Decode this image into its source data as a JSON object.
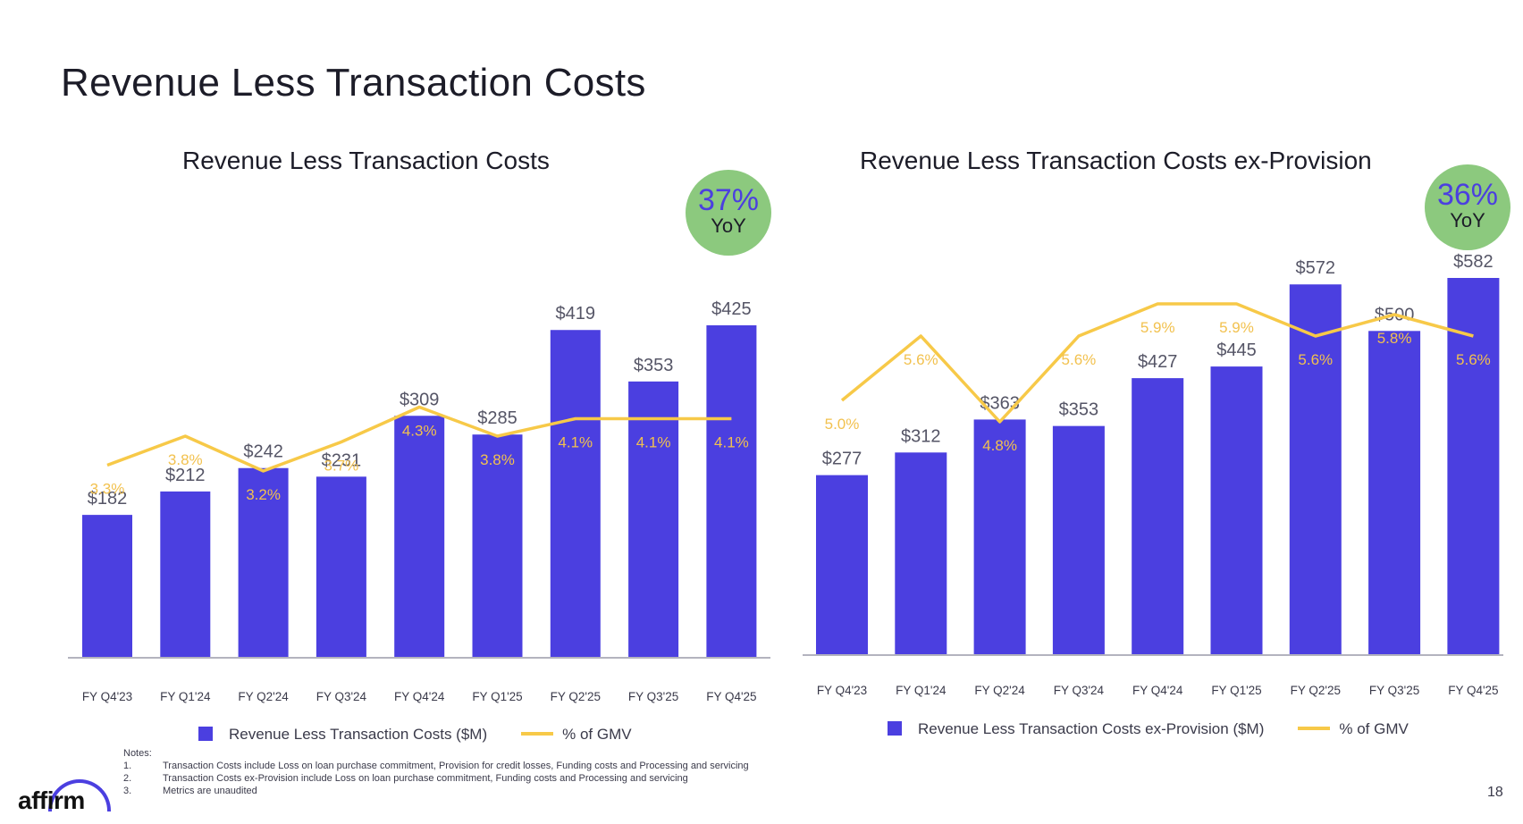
{
  "page": {
    "title": "Revenue Less Transaction Costs",
    "page_number": "18",
    "logo": "affirm"
  },
  "colors": {
    "bar": "#4b3fe0",
    "line": "#f7c948",
    "badge": "#8cc97e"
  },
  "notes": {
    "heading": "Notes:",
    "items": [
      {
        "num": "1.",
        "text": "Transaction Costs include Loss on loan purchase commitment, Provision for credit losses, Funding costs and Processing and servicing"
      },
      {
        "num": "2.",
        "text": "Transaction Costs ex-Provision include Loss on loan purchase commitment, Funding costs and Processing and servicing"
      },
      {
        "num": "3.",
        "text": "Metrics are unaudited"
      }
    ]
  },
  "chart_data": [
    {
      "type": "bar",
      "title": "Revenue Less Transaction Costs",
      "badge": {
        "value": "37%",
        "label": "YoY"
      },
      "categories": [
        "FY Q4'23",
        "FY Q1'24",
        "FY Q2'24",
        "FY Q3'24",
        "FY Q4'24",
        "FY Q1'25",
        "FY Q2'25",
        "FY Q3'25",
        "FY Q4'25"
      ],
      "series": [
        {
          "name": "Revenue Less Transaction Costs ($M)",
          "kind": "bar",
          "values": [
            182,
            212,
            242,
            231,
            309,
            285,
            419,
            353,
            425
          ],
          "labels": [
            "$182",
            "$212",
            "$242",
            "$231",
            "$309",
            "$285",
            "$419",
            "$353",
            "$425"
          ]
        },
        {
          "name": "% of GMV",
          "kind": "line",
          "values": [
            3.3,
            3.8,
            3.2,
            3.7,
            4.3,
            3.8,
            4.1,
            4.1,
            4.1
          ],
          "labels": [
            "3.3%",
            "3.8%",
            "3.2%",
            "3.7%",
            "4.3%",
            "3.8%",
            "4.1%",
            "4.1%",
            "4.1%"
          ]
        }
      ],
      "legend": {
        "bar": "Revenue Less Transaction Costs ($M)",
        "line": "% of GMV"
      },
      "ylim": [
        0,
        425
      ]
    },
    {
      "type": "bar",
      "title": "Revenue Less Transaction Costs ex-Provision",
      "badge": {
        "value": "36%",
        "label": "YoY"
      },
      "categories": [
        "FY Q4'23",
        "FY Q1'24",
        "FY Q2'24",
        "FY Q3'24",
        "FY Q4'24",
        "FY Q1'25",
        "FY Q2'25",
        "FY Q3'25",
        "FY Q4'25"
      ],
      "series": [
        {
          "name": "Revenue Less Transaction Costs ex-Provision ($M)",
          "kind": "bar",
          "values": [
            277,
            312,
            363,
            353,
            427,
            445,
            572,
            500,
            582
          ],
          "labels": [
            "$277",
            "$312",
            "$363",
            "$353",
            "$427",
            "$445",
            "$572",
            "$500",
            "$582"
          ]
        },
        {
          "name": "% of GMV",
          "kind": "line",
          "values": [
            5.0,
            5.6,
            4.8,
            5.6,
            5.9,
            5.9,
            5.6,
            5.8,
            5.6
          ],
          "labels": [
            "5.0%",
            "5.6%",
            "4.8%",
            "5.6%",
            "5.9%",
            "5.9%",
            "5.6%",
            "5.8%",
            "5.6%"
          ]
        }
      ],
      "legend": {
        "bar": "Revenue Less Transaction Costs ex-Provision ($M)",
        "line": "% of GMV"
      },
      "ylim": [
        0,
        582
      ]
    }
  ]
}
